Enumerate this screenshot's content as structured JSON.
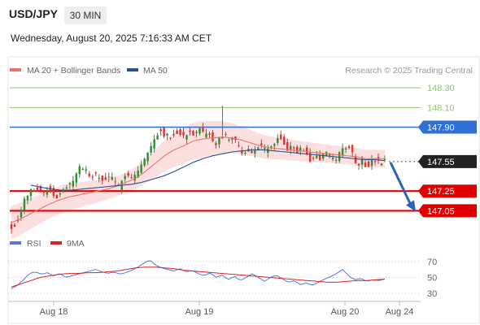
{
  "header": {
    "pair": "USD/JPY",
    "timeframe": "30 MIN",
    "datetime": "Wednesday, August 20, 2025 7:16:33 AM CET"
  },
  "legend": {
    "ma20": "MA 20 + Bollinger Bands",
    "ma50": "MA 50",
    "rsi": "RSI",
    "rsi_ma": "9MA",
    "source": "Research © 2025 Trading Central"
  },
  "colors": {
    "up": "#3a8a3a",
    "down": "#d23a3a",
    "ma20": "#f07070",
    "band": "#fbd5d5",
    "ma50": "#2a4f8a",
    "resistance": "#2f6fd6",
    "target_green": "#8cc870",
    "support": "#e00000",
    "pivot_box": "#222222",
    "rsi": "#5577dd",
    "rsi_ma": "#dd2222"
  },
  "chart_data": [
    {
      "type": "candlestick",
      "title": "USD/JPY 30 MIN",
      "x_labels": [
        "Aug 18",
        "Aug 19",
        "Aug 20",
        "Aug 24"
      ],
      "ylim": [
        146.88,
        148.4
      ],
      "levels": [
        {
          "value": "148.30",
          "role": "target"
        },
        {
          "value": "148.10",
          "role": "target"
        },
        {
          "value": "147.90",
          "role": "resistance"
        },
        {
          "value": "147.55",
          "role": "pivot"
        },
        {
          "value": "147.25",
          "role": "support"
        },
        {
          "value": "147.05",
          "role": "support"
        }
      ],
      "close_path": [
        146.88,
        146.93,
        147.05,
        147.18,
        147.24,
        147.28,
        147.26,
        147.24,
        147.27,
        147.22,
        147.19,
        147.24,
        147.28,
        147.33,
        147.44,
        147.5,
        147.46,
        147.4,
        147.43,
        147.38,
        147.34,
        147.41,
        147.36,
        147.27,
        147.39,
        147.45,
        147.38,
        147.43,
        147.5,
        147.58,
        147.67,
        147.79,
        147.87,
        147.84,
        147.8,
        147.83,
        147.86,
        147.8,
        147.84,
        147.85,
        147.82,
        147.88,
        147.8,
        147.82,
        147.71,
        147.77,
        147.82,
        147.78,
        147.79,
        147.71,
        147.64,
        147.68,
        147.63,
        147.69,
        147.72,
        147.66,
        147.71,
        147.75,
        147.84,
        147.72,
        147.68,
        147.74,
        147.65,
        147.7,
        147.61,
        147.56,
        147.61,
        147.58,
        147.64,
        147.6,
        147.55,
        147.63,
        147.68,
        147.73,
        147.63,
        147.52,
        147.57,
        147.5,
        147.54,
        147.56,
        147.53,
        147.55
      ],
      "ma20_path": [
        146.93,
        146.97,
        147.02,
        147.07,
        147.12,
        147.16,
        147.19,
        147.21,
        147.23,
        147.25,
        147.27,
        147.3,
        147.34,
        147.38,
        147.45,
        147.53,
        147.61,
        147.67,
        147.71,
        147.76,
        147.78,
        147.79,
        147.8,
        147.79,
        147.77,
        147.74,
        147.71,
        147.69,
        147.68,
        147.67,
        147.66,
        147.65,
        147.64,
        147.63,
        147.62,
        147.61,
        147.6,
        147.58,
        147.58,
        147.58
      ],
      "ma50_path": [
        147.31,
        147.29,
        147.27,
        147.26,
        147.26,
        147.27,
        147.28,
        147.29,
        147.3,
        147.31,
        147.32,
        147.34,
        147.37,
        147.4,
        147.44,
        147.49,
        147.54,
        147.58,
        147.61,
        147.63,
        147.65,
        147.66,
        147.67,
        147.67,
        147.66,
        147.65,
        147.64,
        147.63,
        147.62,
        147.61,
        147.6,
        147.59,
        147.58,
        147.57,
        147.57,
        147.56
      ],
      "forecast": {
        "from": "147.55",
        "to": "147.05",
        "direction": "down"
      }
    },
    {
      "type": "line",
      "title": "RSI",
      "yticks": [
        "70",
        "50",
        "30"
      ],
      "ylim": [
        25,
        78
      ],
      "series": [
        {
          "name": "RSI",
          "values": [
            36,
            40,
            47,
            55,
            57,
            54,
            56,
            52,
            55,
            50,
            52,
            54,
            56,
            58,
            60,
            57,
            55,
            57,
            54,
            56,
            59,
            63,
            68,
            72,
            65,
            62,
            60,
            58,
            61,
            57,
            59,
            55,
            52,
            56,
            50,
            53,
            47,
            52,
            46,
            50,
            55,
            50,
            45,
            50,
            53,
            48,
            44,
            46,
            41,
            43,
            40,
            44,
            48,
            51,
            55,
            60,
            52,
            47,
            49,
            45,
            47,
            46,
            48
          ]
        },
        {
          "name": "9MA",
          "values": [
            38,
            42,
            46,
            50,
            52,
            54,
            55,
            55,
            56,
            56,
            57,
            58,
            60,
            62,
            63,
            63,
            62,
            61,
            59,
            58,
            57,
            56,
            55,
            54,
            53,
            52,
            51,
            50,
            49,
            48,
            47,
            46,
            45,
            44,
            44,
            45,
            46,
            46,
            47,
            48
          ]
        }
      ]
    }
  ]
}
